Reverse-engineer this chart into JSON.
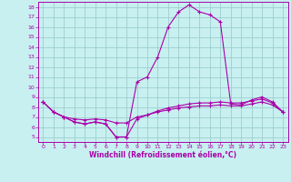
{
  "xlabel": "Windchill (Refroidissement éolien,°C)",
  "background_color": "#c8f0f0",
  "grid_color": "#9ecece",
  "line_color": "#aa00aa",
  "hours": [
    0,
    1,
    2,
    3,
    4,
    5,
    6,
    7,
    8,
    9,
    10,
    11,
    12,
    13,
    14,
    15,
    16,
    17,
    18,
    19,
    20,
    21,
    22,
    23
  ],
  "temp": [
    8.5,
    7.5,
    7.0,
    6.5,
    6.3,
    6.5,
    6.3,
    5.0,
    5.0,
    10.5,
    11.0,
    13.0,
    16.0,
    17.5,
    18.2,
    17.5,
    17.2,
    16.5,
    8.3,
    8.2,
    8.7,
    9.0,
    8.5,
    7.5
  ],
  "windchill": [
    8.5,
    7.5,
    7.0,
    6.5,
    6.3,
    6.5,
    6.3,
    5.0,
    5.0,
    6.8,
    7.2,
    7.6,
    7.9,
    8.1,
    8.3,
    8.4,
    8.4,
    8.5,
    8.4,
    8.4,
    8.6,
    8.8,
    8.4,
    7.5
  ],
  "feels_like": [
    8.5,
    7.5,
    7.0,
    6.8,
    6.7,
    6.8,
    6.7,
    6.4,
    6.4,
    7.0,
    7.2,
    7.5,
    7.7,
    7.9,
    8.0,
    8.1,
    8.1,
    8.2,
    8.1,
    8.1,
    8.3,
    8.5,
    8.2,
    7.5
  ],
  "xmin": -0.5,
  "xmax": 23.5,
  "ymin": 4.5,
  "ymax": 18.5,
  "yticks": [
    5,
    6,
    7,
    8,
    9,
    10,
    11,
    12,
    13,
    14,
    15,
    16,
    17,
    18
  ],
  "xticks": [
    0,
    1,
    2,
    3,
    4,
    5,
    6,
    7,
    8,
    9,
    10,
    11,
    12,
    13,
    14,
    15,
    16,
    17,
    18,
    19,
    20,
    21,
    22,
    23
  ]
}
